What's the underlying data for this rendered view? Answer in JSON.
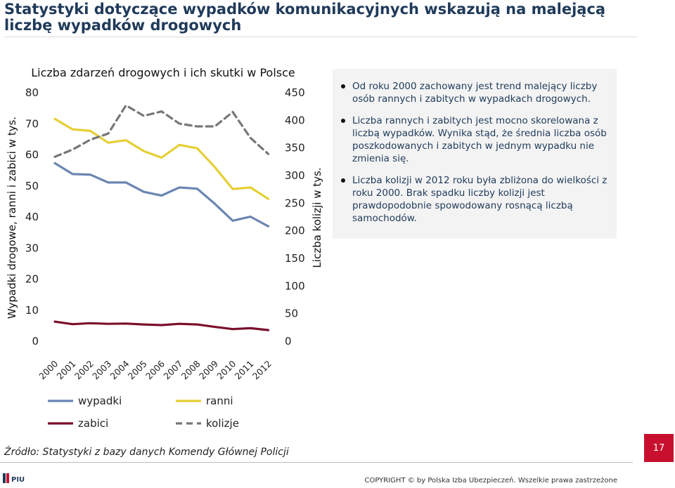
{
  "page_title": "Statystyki dotyczące wypadków komunikacyjnych wskazują na malejącą liczbę wypadków drogowych",
  "chart_data": {
    "type": "line",
    "title": "Liczba zdarzeń drogowych i ich skutki w Polsce",
    "x": [
      "2000",
      "2001",
      "2002",
      "2003",
      "2004",
      "2005",
      "2006",
      "2007",
      "2008",
      "2009",
      "2010",
      "2011",
      "2012"
    ],
    "ylabel_left": "Wypadki drogowe, ranni i zabici w tys.",
    "ylabel_right": "Liczba kolizji w tys.",
    "ylim_left": [
      0,
      80
    ],
    "ylim_right": [
      0,
      450
    ],
    "yticks_left": [
      "0",
      "10",
      "20",
      "30",
      "40",
      "50",
      "60",
      "70",
      "80"
    ],
    "yticks_right": [
      "0",
      "50",
      "100",
      "150",
      "200",
      "250",
      "300",
      "350",
      "400",
      "450"
    ],
    "series": [
      {
        "name": "wypadki",
        "axis": "left",
        "color": "#6b86b3",
        "style": "solid",
        "values": [
          57.3,
          53.8,
          53.6,
          51.1,
          51.1,
          48.1,
          46.9,
          49.5,
          49.1,
          44.2,
          38.8,
          40.1,
          37.0
        ]
      },
      {
        "name": "ranni",
        "axis": "left",
        "color": "#e6cf35",
        "style": "solid",
        "values": [
          71.6,
          68.2,
          67.7,
          63.9,
          64.7,
          61.2,
          59.1,
          63.2,
          62.1,
          56.0,
          49.0,
          49.5,
          45.8
        ]
      },
      {
        "name": "zabici",
        "axis": "left",
        "color": "#7a0f2c",
        "style": "solid",
        "values": [
          6.3,
          5.5,
          5.8,
          5.6,
          5.7,
          5.4,
          5.2,
          5.6,
          5.4,
          4.6,
          3.9,
          4.2,
          3.6
        ]
      },
      {
        "name": "kolizje",
        "axis": "right",
        "color": "#777777",
        "style": "dashed",
        "values": [
          334,
          347,
          365,
          376,
          427,
          408,
          416,
          394,
          389,
          389,
          415,
          368,
          339
        ]
      }
    ],
    "legend_position": "bottom",
    "grid": false
  },
  "bullets": [
    "Od roku 2000 zachowany jest trend malejący liczby osób rannych i zabitych w wypadkach drogowych.",
    "Liczba rannych i zabitych jest mocno skorelowana z liczbą wypadków. Wynika stąd, że średnia liczba osób poszkodowanych i zabitych w jednym wypadku nie zmienia się.",
    "Liczba kolizji w 2012 roku była zbliżona do wielkości z roku 2000. Brak spadku liczby kolizji jest prawdopodobnie spowodowany rosnącą liczbą samochodów."
  ],
  "source": "Źródło: Statystyki z bazy danych Komendy Głównej Policji",
  "page_number": "17",
  "copyright": "COPYRIGHT © by Polska Izba Ubezpieczeń. Wszelkie prawa zastrzeżone",
  "logo_text": "PIU"
}
